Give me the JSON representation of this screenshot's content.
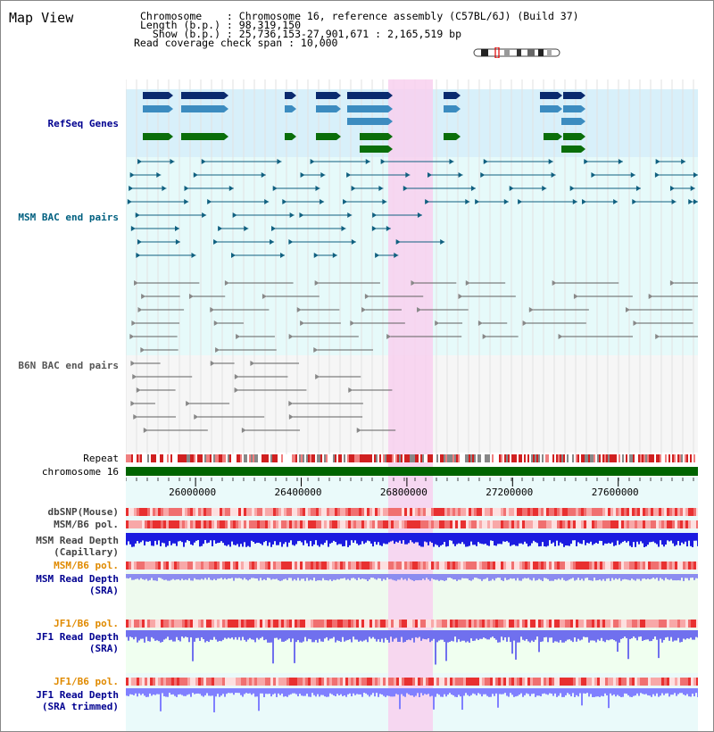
{
  "header": {
    "title": "Map View",
    "info_lines": [
      "Chromosome    : Chromosome 16, reference assembly (C57BL/6J) (Build 37)",
      "Length (b.p.) : 98,319,150",
      "  Show (b.p.) : 25,736,153-27,901,671 : 2,165,519 bp",
      "Read coverage check span : 10,000"
    ]
  },
  "colors": {
    "refseq_bg": "#d8f0fa",
    "msm_bac_bg": "#e6fafa",
    "b6n_bac_bg": "#f6f6f6",
    "highlight": "#f8d0ee",
    "gene_blue": "#0a2a6e",
    "gene_lightblue": "#3c8cc0",
    "gene_green": "#0a6e0a",
    "msm_pair": "#106080",
    "b6n_pair": "#606060",
    "chromosome_bar": "#006400",
    "snp_red": "#e02020",
    "depth_blue": "#1010e0",
    "depth_light": "#8080ff",
    "sra_bg": "#eefaee",
    "orange_label": "#e08a00",
    "navy_label": "#000090"
  },
  "tracks": {
    "refseq_label": "RefSeq Genes",
    "msm_bac_label": "MSM BAC end pairs",
    "b6n_bac_label": "B6N BAC end pairs",
    "repeat_label": "Repeat",
    "chromosome_label": "chromosome 16",
    "dbsnp_label": "dbSNP(Mouse)",
    "msm_b6_pol_label": "MSM/B6 pol.",
    "msm_depth_cap_label1": "MSM Read Depth",
    "msm_depth_cap_label2": "(Capillary)",
    "msm_b6_pol2_label": "MSM/B6 pol.",
    "msm_depth_sra_label1": "MSM Read Depth",
    "msm_depth_sra_label2": "(SRA)",
    "jf1_pol_label": "JF1/B6 pol.",
    "jf1_depth_sra_label1": "JF1 Read Depth",
    "jf1_depth_sra_label2": "(SRA)",
    "jf1_pol2_label": "JF1/B6 pol.",
    "jf1_depth_trim_label1": "JF1 Read Depth",
    "jf1_depth_trim_label2": "(SRA trimmed)"
  },
  "axis": {
    "view_start": 25736153,
    "view_end": 27901671,
    "tick_labels": [
      "26000000",
      "26400000",
      "26800000",
      "27200000",
      "27600000"
    ],
    "highlight_range": [
      26725000,
      26895000
    ]
  }
}
